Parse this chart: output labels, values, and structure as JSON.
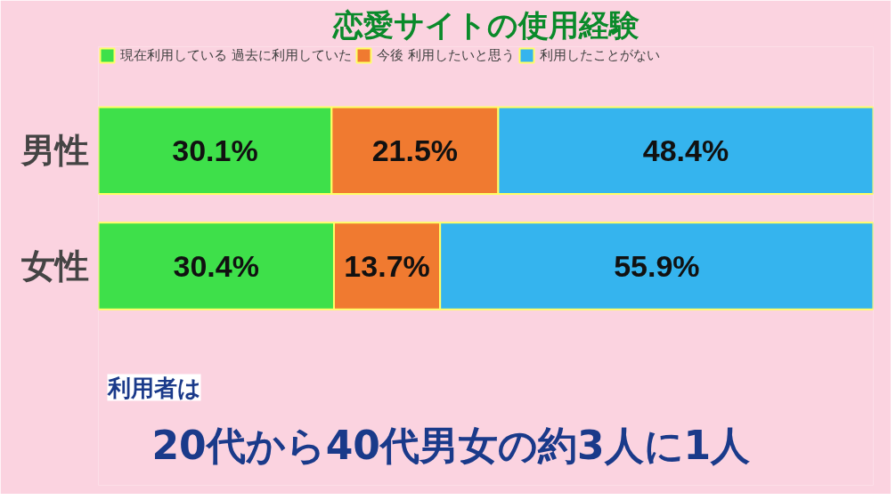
{
  "chart_data": {
    "type": "bar",
    "orientation": "horizontal",
    "stacked": true,
    "title": "恋愛サイトの使用経験",
    "categories": [
      "男性",
      "女性"
    ],
    "series": [
      {
        "name": "現在利用している 過去に利用していた",
        "color": "#3ee04a",
        "values": [
          30.1,
          30.4
        ],
        "value_labels": [
          "30.1%",
          "30.4%"
        ]
      },
      {
        "name": "今後 利用したいと思う",
        "color": "#f07a30",
        "values": [
          21.5,
          13.7
        ],
        "value_labels": [
          "21.5%",
          "13.7%"
        ]
      },
      {
        "name": "利用したことがない",
        "color": "#35b4ee",
        "values": [
          48.4,
          55.9
        ],
        "value_labels": [
          "48.4%",
          "55.9%"
        ]
      }
    ],
    "legend": "top",
    "tick_labels": "y",
    "grid": false,
    "annotations": [
      "利用者は",
      "20代から40代男女の約3人に1人"
    ]
  }
}
